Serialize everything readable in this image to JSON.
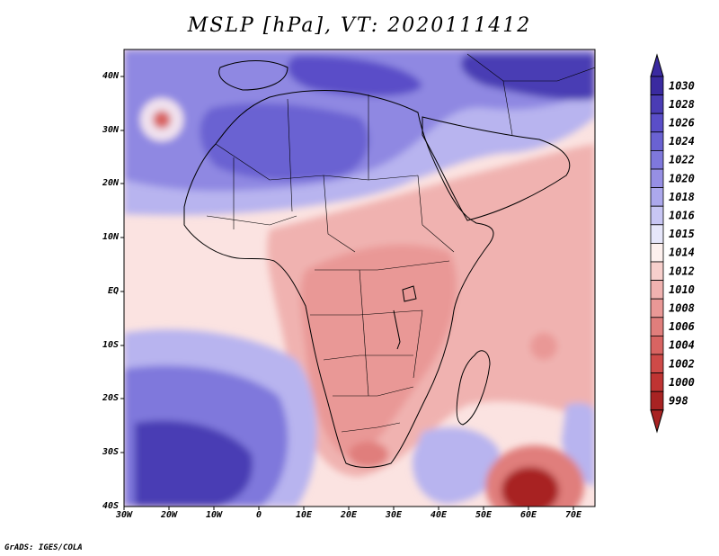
{
  "title": "MSLP [hPa], VT: 2020111412",
  "footer": "GrADS: IGES/COLA",
  "map": {
    "type": "filled-contour",
    "variable": "MSLP",
    "units": "hPa",
    "valid_time": "2020111412",
    "lon_range": [
      -30,
      75
    ],
    "lat_range": [
      -40,
      45
    ],
    "lat_labels": [
      "40N",
      "30N",
      "20N",
      "10N",
      "EQ",
      "10S",
      "20S",
      "30S",
      "40S"
    ],
    "lon_labels": [
      "30W",
      "20W",
      "10W",
      "0",
      "10E",
      "20E",
      "30E",
      "40E",
      "50E",
      "60E",
      "70E"
    ],
    "features": {
      "azores_low": "1000",
      "south_atlantic_high": "1028",
      "saharan_high": "1026",
      "south_indian_low": "998"
    }
  },
  "colorbar": {
    "levels": [
      "1030",
      "1028",
      "1026",
      "1024",
      "1022",
      "1020",
      "1018",
      "1016",
      "1015",
      "1014",
      "1012",
      "1010",
      "1008",
      "1006",
      "1004",
      "1002",
      "1000",
      "998"
    ],
    "colors": [
      "#3a2aa0",
      "#4a3cb4",
      "#5a4ec8",
      "#6a62d2",
      "#7f78dc",
      "#968fe4",
      "#aca8ec",
      "#c8c6f4",
      "#e6e6fa",
      "#fdf0ee",
      "#f7cfcc",
      "#f0b2b0",
      "#e99896",
      "#e07e7c",
      "#d86462",
      "#ce4a48",
      "#bf3433",
      "#a82323"
    ]
  }
}
